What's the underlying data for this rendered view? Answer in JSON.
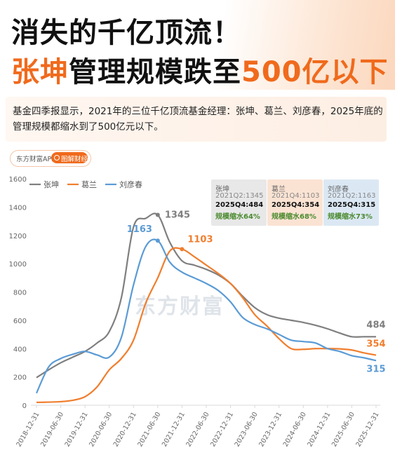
{
  "headline": {
    "line1": "消失的千亿顶流！",
    "line2_orange_a": "张坤",
    "line2_black": "管理规模跌至",
    "line2_orange_b": "500亿以下"
  },
  "description": "基金四季报显示，2021年的三位千亿顶流基金经理：张坤、葛兰、刘彦春，2025年底的管理规模都缩水到了500亿元以下。",
  "badge": {
    "left": "东方财富APP",
    "right": "图解财经"
  },
  "watermark": "东方财富",
  "colors": {
    "zhangkun": "#7f7f7f",
    "gelan": "#f07e2e",
    "liuyanchun": "#5b9bd5",
    "accent": "#f06a1c",
    "shrink": "#4a8a2e"
  },
  "info_boxes": [
    {
      "name": "张坤",
      "peak": "2021Q2:1345",
      "now": "2025Q4:484",
      "shrink": "规模缩水64%",
      "bg": "#e8e8e8",
      "name_color": "#666666"
    },
    {
      "name": "葛兰",
      "peak": "2021Q4:1103",
      "now": "2025Q4:354",
      "shrink": "规模缩水68%",
      "bg": "#fbe3d3",
      "name_color": "#666666"
    },
    {
      "name": "刘彦春",
      "peak": "2021Q2:1163",
      "now": "2025Q4:315",
      "shrink": "规模缩水73%",
      "bg": "#dbe8f4",
      "name_color": "#666666"
    }
  ],
  "chart_data": {
    "type": "line",
    "xlabel": "",
    "ylabel": "",
    "ylim": [
      0,
      1600
    ],
    "yticks": [
      0,
      200,
      400,
      600,
      800,
      1000,
      1200,
      1400,
      1600
    ],
    "xticks": [
      "2018-12-31",
      "2019-06-30",
      "2019-12-31",
      "2020-06-30",
      "2020-12-31",
      "2021-06-30",
      "2021-12-31",
      "2022-06-30",
      "2022-12-31",
      "2023-06-30",
      "2023-12-31",
      "2024-06-30",
      "2024-12-31",
      "2025-06-30",
      "2025-12-31"
    ],
    "legend_position": "top-left",
    "grid": false,
    "x": [
      "2018-12-31",
      "2019-03-31",
      "2019-06-30",
      "2019-09-30",
      "2019-12-31",
      "2020-03-31",
      "2020-06-30",
      "2020-09-30",
      "2020-12-31",
      "2021-03-31",
      "2021-06-30",
      "2021-09-30",
      "2021-12-31",
      "2022-03-31",
      "2022-06-30",
      "2022-09-30",
      "2022-12-31",
      "2023-03-31",
      "2023-06-30",
      "2023-09-30",
      "2023-12-31",
      "2024-03-31",
      "2024-06-30",
      "2024-09-30",
      "2024-12-31",
      "2025-03-31",
      "2025-06-30",
      "2025-09-30",
      "2025-12-31"
    ],
    "series": [
      {
        "name": "张坤",
        "color": "#7f7f7f",
        "values": [
          195,
          250,
          300,
          340,
          380,
          440,
          520,
          760,
          1260,
          1320,
          1345,
          1150,
          1020,
          990,
          960,
          920,
          860,
          770,
          690,
          640,
          615,
          600,
          585,
          565,
          540,
          510,
          484,
          484,
          484
        ]
      },
      {
        "name": "葛兰",
        "color": "#f07e2e",
        "values": [
          20,
          22,
          25,
          35,
          60,
          130,
          250,
          330,
          460,
          720,
          900,
          1090,
          1103,
          1050,
          990,
          930,
          860,
          760,
          640,
          560,
          470,
          400,
          395,
          400,
          400,
          398,
          390,
          370,
          354
        ]
      },
      {
        "name": "刘彦春",
        "color": "#5b9bd5",
        "values": [
          85,
          270,
          330,
          360,
          380,
          355,
          340,
          480,
          850,
          1120,
          1163,
          1010,
          940,
          900,
          860,
          810,
          730,
          620,
          570,
          540,
          500,
          460,
          450,
          440,
          400,
          380,
          350,
          335,
          315
        ]
      }
    ],
    "labels": [
      {
        "series": "张坤",
        "x": "2021-06-30",
        "y": 1345,
        "text": "1345"
      },
      {
        "series": "刘彦春",
        "x": "2021-06-30",
        "y": 1163,
        "text": "1163"
      },
      {
        "series": "葛兰",
        "x": "2021-12-31",
        "y": 1103,
        "text": "1103"
      },
      {
        "series": "张坤",
        "x": "2025-12-31",
        "y": 484,
        "text": "484"
      },
      {
        "series": "葛兰",
        "x": "2025-12-31",
        "y": 354,
        "text": "354"
      },
      {
        "series": "刘彦春",
        "x": "2025-12-31",
        "y": 315,
        "text": "315"
      }
    ]
  }
}
